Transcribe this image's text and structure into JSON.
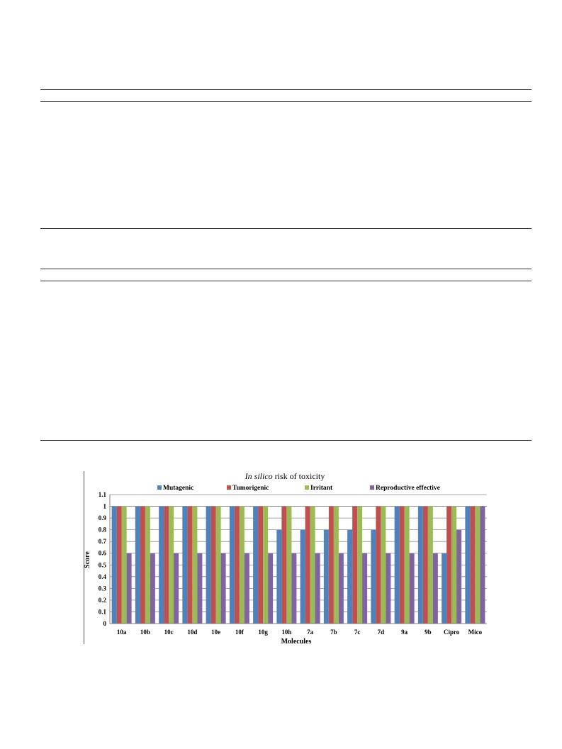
{
  "chart_data": {
    "type": "bar",
    "title_italic": "In silico",
    "title_rest": " risk of toxicity",
    "xlabel": "Molecules",
    "ylabel": "Score",
    "ylim": [
      0,
      1.1
    ],
    "ytick_step": 0.1,
    "ytick_labels": [
      "0",
      "0.1",
      "0.2",
      "0.3",
      "0.4",
      "0.5",
      "0.6",
      "0.7",
      "0.8",
      "0.9",
      "1",
      "1.1"
    ],
    "grid": true,
    "legend_position": "top",
    "categories": [
      "10a",
      "10b",
      "10c",
      "10d",
      "10e",
      "10f",
      "10g",
      "10h",
      "7a",
      "7b",
      "7c",
      "7d",
      "9a",
      "9b",
      "Cipro",
      "Mico"
    ],
    "series": [
      {
        "name": "Mutagenic",
        "color": "#4F81BD",
        "values": [
          1,
          1,
          1,
          1,
          1,
          1,
          1,
          0.8,
          0.8,
          0.8,
          0.8,
          0.8,
          1,
          1,
          0.6,
          1
        ]
      },
      {
        "name": "Tumorigenic",
        "color": "#C0504D",
        "values": [
          1,
          1,
          1,
          1,
          1,
          1,
          1,
          1,
          1,
          1,
          1,
          1,
          1,
          1,
          1,
          1
        ]
      },
      {
        "name": "Irritant",
        "color": "#9BBB59",
        "values": [
          1,
          1,
          1,
          1,
          1,
          1,
          1,
          1,
          1,
          1,
          1,
          1,
          1,
          1,
          1,
          1
        ]
      },
      {
        "name": "Reproductive effective",
        "color": "#8064A2",
        "values": [
          0.6,
          0.6,
          0.6,
          0.6,
          0.6,
          0.6,
          0.6,
          0.6,
          0.6,
          0.6,
          0.6,
          0.6,
          0.6,
          0.6,
          0.8,
          1
        ]
      }
    ]
  }
}
